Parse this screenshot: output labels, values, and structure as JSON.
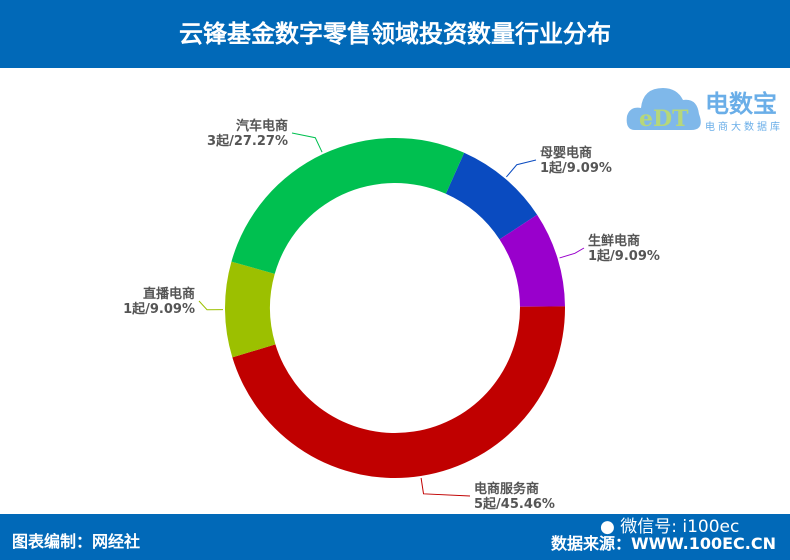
{
  "header": {
    "title": "云锋基金数字零售领域投资数量行业分布"
  },
  "footer": {
    "left": "图表编制：网经社",
    "right": "数据来源：WWW.100EC.CN",
    "wechat": "微信号: i100ec"
  },
  "logo": {
    "brand": "电数宝",
    "sub": "电商大数据库",
    "mark": "eDT"
  },
  "chart_data": {
    "type": "pie",
    "donut": true,
    "slices": [
      {
        "name": "母婴电商",
        "count": "1起",
        "percent": 9.09,
        "label": "1起/9.09%",
        "color": "#0a4bc0"
      },
      {
        "name": "生鲜电商",
        "count": "1起",
        "percent": 9.09,
        "label": "1起/9.09%",
        "color": "#9900cc"
      },
      {
        "name": "电商服务商",
        "count": "5起",
        "percent": 45.46,
        "label": "5起/45.46%",
        "color": "#c00000"
      },
      {
        "name": "直播电商",
        "count": "1起",
        "percent": 9.09,
        "label": "1起/9.09%",
        "color": "#9cc000"
      },
      {
        "name": "汽车电商",
        "count": "3起",
        "percent": 27.27,
        "label": "3起/27.27%",
        "color": "#00c050"
      }
    ]
  }
}
